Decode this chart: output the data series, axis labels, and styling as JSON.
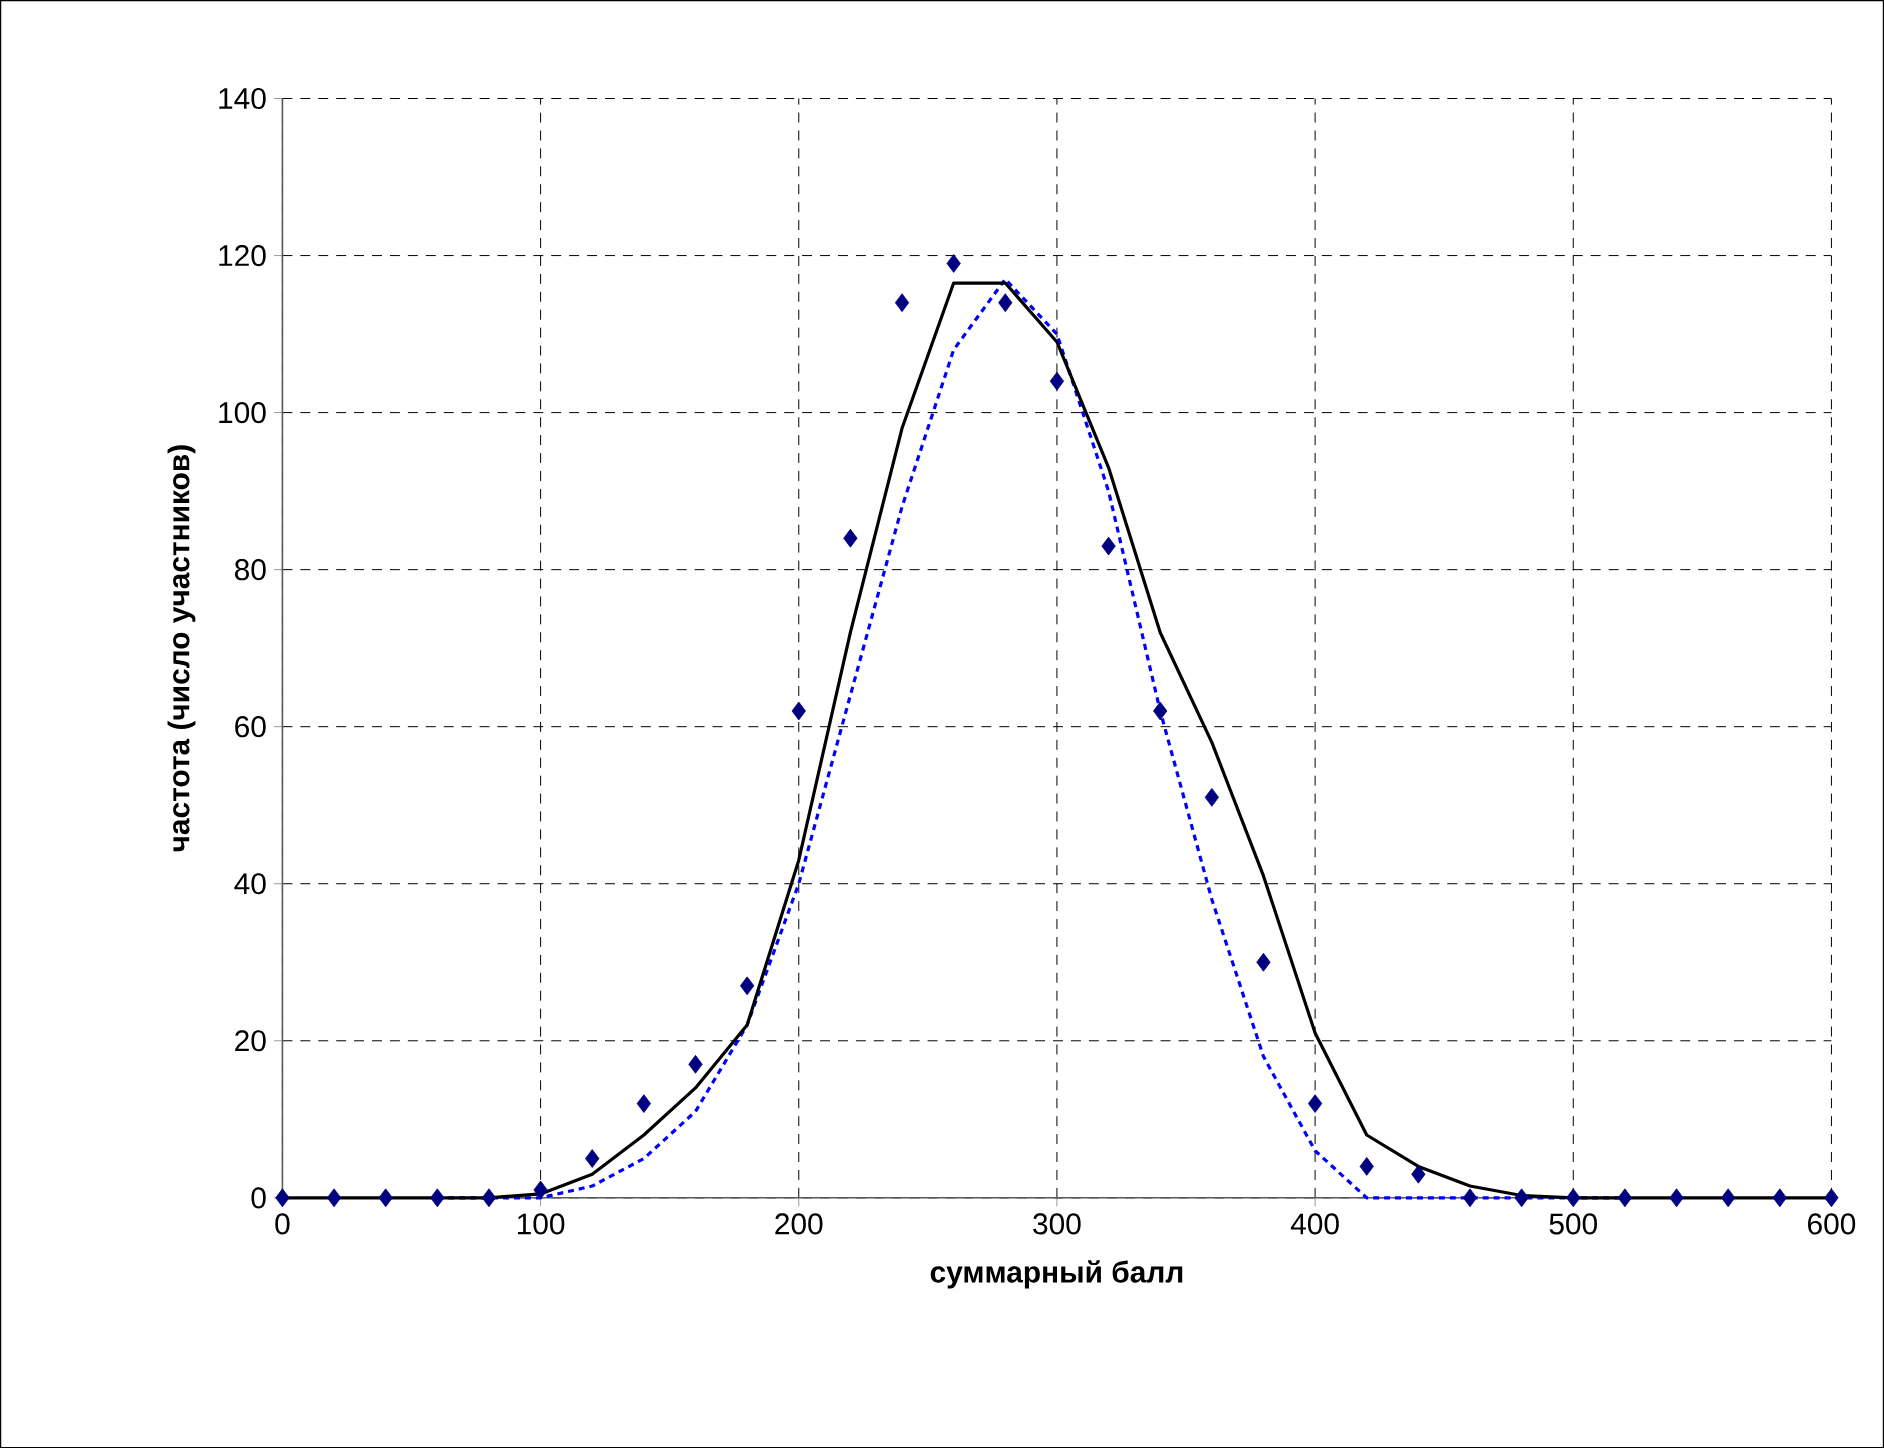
{
  "chart_data": {
    "type": "line",
    "xlabel": "суммарный балл",
    "ylabel": "частота (число участников)",
    "x": [
      0,
      20,
      40,
      60,
      80,
      100,
      120,
      140,
      160,
      180,
      200,
      220,
      240,
      260,
      280,
      300,
      320,
      340,
      360,
      380,
      400,
      420,
      440,
      460,
      480,
      500,
      520,
      540,
      560,
      580,
      600
    ],
    "series": [
      {
        "type": "scatter",
        "color": "#000080",
        "marker": "diamond",
        "values": [
          0,
          0,
          0,
          0,
          0,
          1,
          5,
          12,
          17,
          27,
          62,
          84,
          114,
          119,
          114,
          104,
          83,
          62,
          51,
          30,
          12,
          4,
          3,
          0,
          0,
          0,
          0,
          0,
          0,
          0,
          0
        ]
      },
      {
        "type": "line",
        "color": "#0000ff",
        "line_style": "dotted",
        "values": [
          null,
          null,
          null,
          0,
          0,
          0,
          1.5,
          5,
          11,
          22,
          40,
          64,
          88,
          108,
          117,
          110,
          90,
          62,
          38,
          18,
          6,
          0,
          0,
          0,
          0,
          0,
          0,
          null,
          null,
          null,
          null
        ]
      },
      {
        "color": "#000000",
        "line_style": "solid",
        "values": [
          0,
          0,
          0,
          0,
          0,
          0.5,
          3,
          8,
          14,
          22,
          43,
          72,
          98,
          116.5,
          116.5,
          109,
          93,
          72,
          58,
          41,
          21,
          8,
          4,
          1.5,
          0.3,
          0,
          0,
          0,
          0,
          0,
          0
        ]
      }
    ],
    "xlim": [
      0,
      600
    ],
    "ylim": [
      0,
      140
    ],
    "xticks": [
      0,
      100,
      200,
      300,
      400,
      500,
      600
    ],
    "yticks": [
      0,
      20,
      40,
      60,
      80,
      100,
      120,
      140
    ],
    "grid": true
  }
}
